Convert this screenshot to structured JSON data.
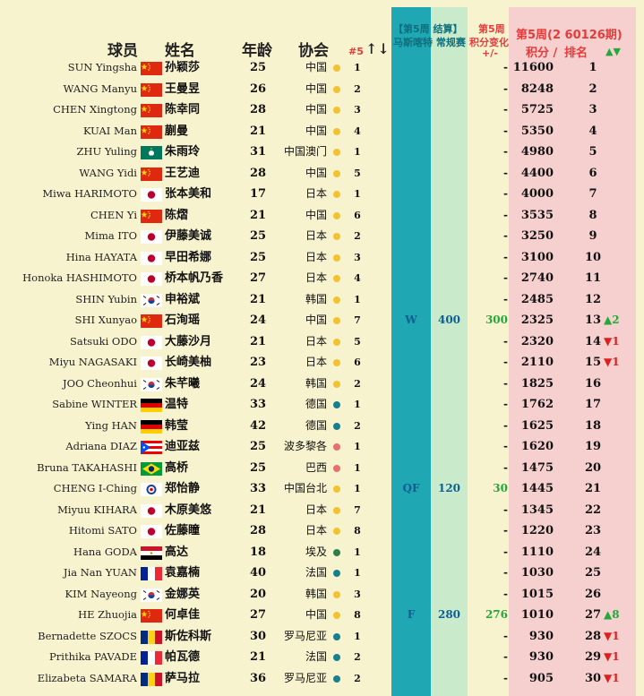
{
  "header": {
    "player_en": "球员",
    "name_cn": "姓名",
    "age": "年龄",
    "assoc": "协会",
    "idx": "#5",
    "sort": "↑↓",
    "event_line1": "【第5周 结算】",
    "event_line2": "马斯喀特 常规赛",
    "change_line1": "第5周",
    "change_line2": "积分变化",
    "change_line3": "+/-",
    "week_title": "第5周(2 60126期)",
    "points": "积分 /",
    "rank": "排名",
    "move": "▲▼"
  },
  "colors": {
    "teal_band": "#1fa7b4",
    "green_band": "#c9ebcb",
    "pink_band": "#f6cfcf",
    "up": "#23a83a",
    "down": "#e02020"
  },
  "rows": [
    {
      "en": "SUN Yingsha",
      "flag": "cn",
      "cn": "孙颖莎",
      "age": "25",
      "assoc": "中国",
      "dot": "gold",
      "idx": "1",
      "res": "",
      "pts": "",
      "chg": "-",
      "score": "11600",
      "rank": "1",
      "mv": ""
    },
    {
      "en": "WANG Manyu",
      "flag": "cn",
      "cn": "王曼昱",
      "age": "26",
      "assoc": "中国",
      "dot": "gold",
      "idx": "2",
      "res": "",
      "pts": "",
      "chg": "-",
      "score": "8248",
      "rank": "2",
      "mv": ""
    },
    {
      "en": "CHEN Xingtong",
      "flag": "cn",
      "cn": "陈幸同",
      "age": "28",
      "assoc": "中国",
      "dot": "gold",
      "idx": "3",
      "res": "",
      "pts": "",
      "chg": "-",
      "score": "5725",
      "rank": "3",
      "mv": ""
    },
    {
      "en": "KUAI Man",
      "flag": "cn",
      "cn": "蒯曼",
      "age": "21",
      "assoc": "中国",
      "dot": "gold",
      "idx": "4",
      "res": "",
      "pts": "",
      "chg": "-",
      "score": "5350",
      "rank": "4",
      "mv": ""
    },
    {
      "en": "ZHU Yuling",
      "flag": "mo",
      "cn": "朱雨玲",
      "age": "31",
      "assoc": "中国澳门",
      "dot": "gold",
      "idx": "1",
      "res": "",
      "pts": "",
      "chg": "-",
      "score": "4980",
      "rank": "5",
      "mv": ""
    },
    {
      "en": "WANG Yidi",
      "flag": "cn",
      "cn": "王艺迪",
      "age": "28",
      "assoc": "中国",
      "dot": "gold",
      "idx": "5",
      "res": "",
      "pts": "",
      "chg": "-",
      "score": "4400",
      "rank": "6",
      "mv": ""
    },
    {
      "en": "Miwa HARIMOTO",
      "flag": "jp",
      "cn": "张本美和",
      "age": "17",
      "assoc": "日本",
      "dot": "gold",
      "idx": "1",
      "res": "",
      "pts": "",
      "chg": "-",
      "score": "4000",
      "rank": "7",
      "mv": ""
    },
    {
      "en": "CHEN Yi",
      "flag": "cn",
      "cn": "陈熠",
      "age": "21",
      "assoc": "中国",
      "dot": "gold",
      "idx": "6",
      "res": "",
      "pts": "",
      "chg": "-",
      "score": "3535",
      "rank": "8",
      "mv": ""
    },
    {
      "en": "Mima ITO",
      "flag": "jp",
      "cn": "伊藤美诚",
      "age": "25",
      "assoc": "日本",
      "dot": "gold",
      "idx": "2",
      "res": "",
      "pts": "",
      "chg": "-",
      "score": "3250",
      "rank": "9",
      "mv": ""
    },
    {
      "en": "Hina HAYATA",
      "flag": "jp",
      "cn": "早田希娜",
      "age": "25",
      "assoc": "日本",
      "dot": "gold",
      "idx": "3",
      "res": "",
      "pts": "",
      "chg": "-",
      "score": "3100",
      "rank": "10",
      "mv": ""
    },
    {
      "en": "Honoka HASHIMOTO",
      "flag": "jp",
      "cn": "桥本帆乃香",
      "age": "27",
      "assoc": "日本",
      "dot": "gold",
      "idx": "4",
      "res": "",
      "pts": "",
      "chg": "-",
      "score": "2740",
      "rank": "11",
      "mv": ""
    },
    {
      "en": "SHIN Yubin",
      "flag": "kr",
      "cn": "申裕斌",
      "age": "21",
      "assoc": "韩国",
      "dot": "gold",
      "idx": "1",
      "res": "",
      "pts": "",
      "chg": "-",
      "score": "2485",
      "rank": "12",
      "mv": ""
    },
    {
      "en": "SHI Xunyao",
      "flag": "cn",
      "cn": "石洵瑶",
      "age": "24",
      "assoc": "中国",
      "dot": "gold",
      "idx": "7",
      "res": "W",
      "pts": "400",
      "chg": "300",
      "score": "2325",
      "rank": "13",
      "mv": "▲2"
    },
    {
      "en": "Satsuki ODO",
      "flag": "jp",
      "cn": "大藤沙月",
      "age": "21",
      "assoc": "日本",
      "dot": "gold",
      "idx": "5",
      "res": "",
      "pts": "",
      "chg": "-",
      "score": "2320",
      "rank": "14",
      "mv": "▼1"
    },
    {
      "en": "Miyu NAGASAKI",
      "flag": "jp",
      "cn": "长崎美柚",
      "age": "23",
      "assoc": "日本",
      "dot": "gold",
      "idx": "6",
      "res": "",
      "pts": "",
      "chg": "-",
      "score": "2110",
      "rank": "15",
      "mv": "▼1"
    },
    {
      "en": "JOO Cheonhui",
      "flag": "kr",
      "cn": "朱芊曦",
      "age": "24",
      "assoc": "韩国",
      "dot": "gold",
      "idx": "2",
      "res": "",
      "pts": "",
      "chg": "-",
      "score": "1825",
      "rank": "16",
      "mv": ""
    },
    {
      "en": "Sabine WINTER",
      "flag": "de",
      "cn": "温特",
      "age": "33",
      "assoc": "德国",
      "dot": "teal",
      "idx": "1",
      "res": "",
      "pts": "",
      "chg": "-",
      "score": "1762",
      "rank": "17",
      "mv": ""
    },
    {
      "en": "Ying HAN",
      "flag": "de",
      "cn": "韩莹",
      "age": "42",
      "assoc": "德国",
      "dot": "teal",
      "idx": "2",
      "res": "",
      "pts": "",
      "chg": "-",
      "score": "1625",
      "rank": "18",
      "mv": ""
    },
    {
      "en": "Adriana DIAZ",
      "flag": "pr",
      "cn": "迪亚兹",
      "age": "25",
      "assoc": "波多黎各",
      "dot": "pink",
      "idx": "1",
      "res": "",
      "pts": "",
      "chg": "-",
      "score": "1620",
      "rank": "19",
      "mv": ""
    },
    {
      "en": "Bruna TAKAHASHI",
      "flag": "br",
      "cn": "高桥",
      "age": "25",
      "assoc": "巴西",
      "dot": "pink",
      "idx": "1",
      "res": "",
      "pts": "",
      "chg": "-",
      "score": "1475",
      "rank": "20",
      "mv": ""
    },
    {
      "en": "CHENG I-Ching",
      "flag": "tpe",
      "cn": "郑怡静",
      "age": "33",
      "assoc": "中国台北",
      "dot": "gold",
      "idx": "1",
      "res": "QF",
      "pts": "120",
      "chg": "30",
      "score": "1445",
      "rank": "21",
      "mv": ""
    },
    {
      "en": "Miyuu KIHARA",
      "flag": "jp",
      "cn": "木原美悠",
      "age": "21",
      "assoc": "日本",
      "dot": "gold",
      "idx": "7",
      "res": "",
      "pts": "",
      "chg": "-",
      "score": "1345",
      "rank": "22",
      "mv": ""
    },
    {
      "en": "Hitomi SATO",
      "flag": "jp",
      "cn": "佐藤瞳",
      "age": "28",
      "assoc": "日本",
      "dot": "gold",
      "idx": "8",
      "res": "",
      "pts": "",
      "chg": "-",
      "score": "1220",
      "rank": "23",
      "mv": ""
    },
    {
      "en": "Hana GODA",
      "flag": "eg",
      "cn": "高达",
      "age": "18",
      "assoc": "埃及",
      "dot": "green",
      "idx": "1",
      "res": "",
      "pts": "",
      "chg": "-",
      "score": "1110",
      "rank": "24",
      "mv": ""
    },
    {
      "en": "Jia Nan YUAN",
      "flag": "fr",
      "cn": "袁嘉楠",
      "age": "40",
      "assoc": "法国",
      "dot": "teal",
      "idx": "1",
      "res": "",
      "pts": "",
      "chg": "-",
      "score": "1030",
      "rank": "25",
      "mv": ""
    },
    {
      "en": "KIM Nayeong",
      "flag": "kr",
      "cn": "金娜英",
      "age": "20",
      "assoc": "韩国",
      "dot": "gold",
      "idx": "3",
      "res": "",
      "pts": "",
      "chg": "-",
      "score": "1015",
      "rank": "26",
      "mv": ""
    },
    {
      "en": "HE Zhuojia",
      "flag": "cn",
      "cn": "何卓佳",
      "age": "27",
      "assoc": "中国",
      "dot": "gold",
      "idx": "8",
      "res": "F",
      "pts": "280",
      "chg": "276",
      "score": "1010",
      "rank": "27",
      "mv": "▲8"
    },
    {
      "en": "Bernadette SZOCS",
      "flag": "ro",
      "cn": "斯佐科斯",
      "age": "30",
      "assoc": "罗马尼亚",
      "dot": "teal",
      "idx": "1",
      "res": "",
      "pts": "",
      "chg": "-",
      "score": "930",
      "rank": "28",
      "mv": "▼1"
    },
    {
      "en": "Prithika PAVADE",
      "flag": "fr",
      "cn": "帕瓦德",
      "age": "21",
      "assoc": "法国",
      "dot": "teal",
      "idx": "2",
      "res": "",
      "pts": "",
      "chg": "-",
      "score": "930",
      "rank": "29",
      "mv": "▼1"
    },
    {
      "en": "Elizabeta SAMARA",
      "flag": "ro",
      "cn": "萨马拉",
      "age": "36",
      "assoc": "罗马尼亚",
      "dot": "teal",
      "idx": "2",
      "res": "",
      "pts": "",
      "chg": "-",
      "score": "905",
      "rank": "30",
      "mv": "▼1"
    }
  ]
}
